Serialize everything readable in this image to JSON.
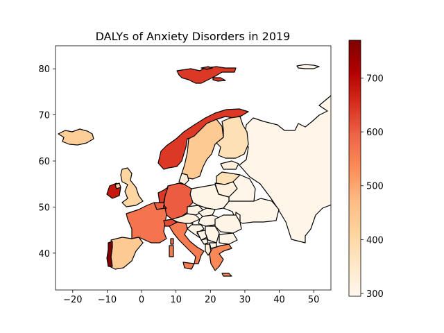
{
  "chart_data": {
    "type": "choropleth",
    "title": "DALYs of Anxiety Disorders in 2019",
    "xlabel": "",
    "ylabel": "",
    "xlim": [
      -25,
      55
    ],
    "ylim": [
      32,
      85
    ],
    "x_ticks": [
      -20,
      -10,
      0,
      10,
      20,
      30,
      40,
      50
    ],
    "y_ticks": [
      40,
      50,
      60,
      70,
      80
    ],
    "x_tick_labels": [
      "−20",
      "−10",
      "0",
      "10",
      "20",
      "30",
      "40",
      "50"
    ],
    "y_tick_labels": [
      "40",
      "50",
      "60",
      "70",
      "80"
    ],
    "colormap": "OrRd",
    "colorbar": {
      "range": [
        295,
        770
      ],
      "ticks": [
        300,
        400,
        500,
        600,
        700
      ],
      "tick_labels": [
        "300",
        "400",
        "500",
        "600",
        "700"
      ],
      "placement": "right"
    },
    "regions": [
      {
        "region": "Portugal",
        "value": 765
      },
      {
        "region": "Svalbard",
        "value": 640
      },
      {
        "region": "Norway",
        "value": 640
      },
      {
        "region": "Ireland",
        "value": 680
      },
      {
        "region": "Netherlands",
        "value": 640
      },
      {
        "region": "Belgium",
        "value": 600
      },
      {
        "region": "Germany",
        "value": 600
      },
      {
        "region": "France",
        "value": 570
      },
      {
        "region": "Switzerland",
        "value": 620
      },
      {
        "region": "Italy",
        "value": 560
      },
      {
        "region": "Greece",
        "value": 540
      },
      {
        "region": "Sweden",
        "value": 440
      },
      {
        "region": "Iceland",
        "value": 430
      },
      {
        "region": "Spain",
        "value": 440
      },
      {
        "region": "United Kingdom",
        "value": 410
      },
      {
        "region": "Finland",
        "value": 380
      },
      {
        "region": "Latvia",
        "value": 380
      },
      {
        "region": "Denmark",
        "value": 330
      },
      {
        "region": "Lithuania",
        "value": 320
      },
      {
        "region": "Estonia",
        "value": 320
      },
      {
        "region": "Austria",
        "value": 320
      },
      {
        "region": "Albania",
        "value": 330
      },
      {
        "region": "Poland",
        "value": 305
      },
      {
        "region": "Czechia",
        "value": 305
      },
      {
        "region": "Slovakia",
        "value": 305
      },
      {
        "region": "Hungary",
        "value": 305
      },
      {
        "region": "Romania",
        "value": 305
      },
      {
        "region": "Bulgaria",
        "value": 305
      },
      {
        "region": "Serbia",
        "value": 305
      },
      {
        "region": "Croatia",
        "value": 305
      },
      {
        "region": "Bosnia and Herzegovina",
        "value": 305
      },
      {
        "region": "Slovenia",
        "value": 305
      },
      {
        "region": "Montenegro",
        "value": 305
      },
      {
        "region": "North Macedonia",
        "value": 305
      },
      {
        "region": "Belarus",
        "value": 300
      },
      {
        "region": "Ukraine",
        "value": 300
      },
      {
        "region": "Moldova",
        "value": 300
      },
      {
        "region": "Russia",
        "value": 300
      },
      {
        "region": "Luxembourg",
        "value": 600
      }
    ],
    "colors": {
      "c300": "#fff3e5",
      "c330": "#fee8cc",
      "c380": "#fddbb0",
      "c410": "#fdcc93",
      "c440": "#fdbe83",
      "c540": "#f77d5a",
      "c560": "#f06d51",
      "c600": "#e64d38",
      "c640": "#d92f23",
      "c680": "#cc1d14",
      "c765": "#8b0000"
    }
  }
}
